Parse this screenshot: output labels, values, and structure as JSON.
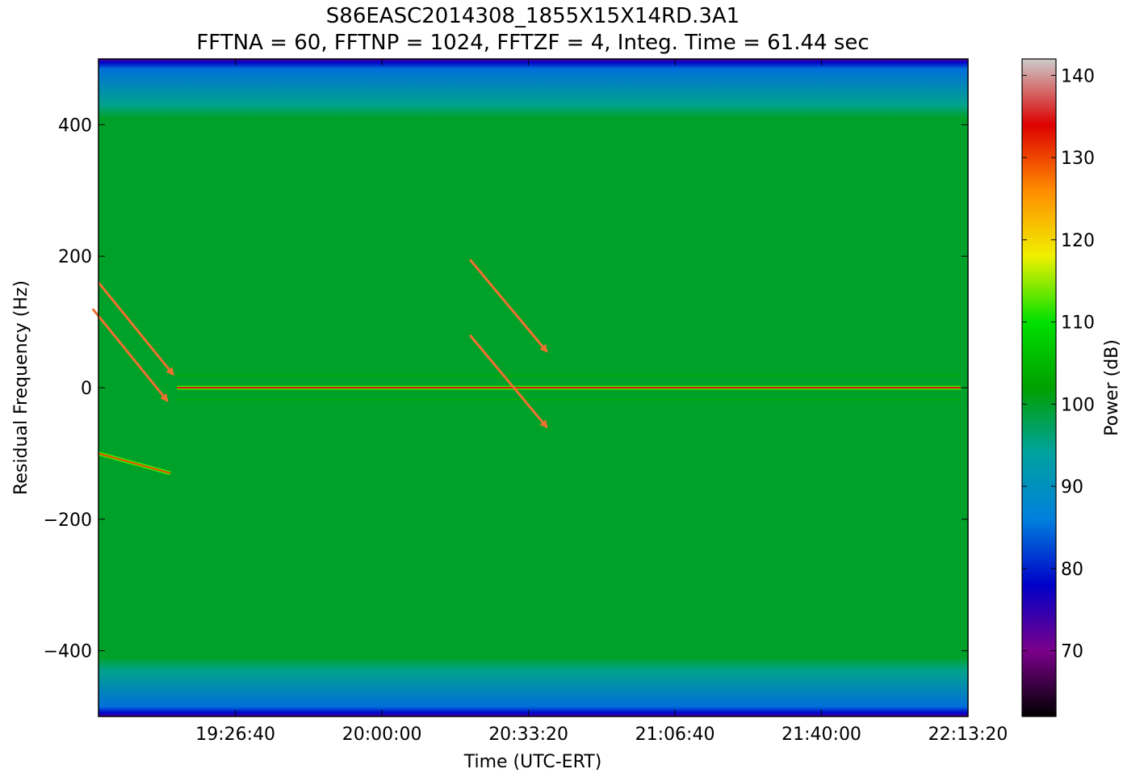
{
  "chart_data": {
    "type": "heatmap",
    "title": "S86EASC2014308_1855X15X14RD.3A1",
    "subtitle": "FFTNA = 60, FFTNP = 1024, FFTZF = 4, Integ. Time = 61.44 sec",
    "xlabel": "Time (UTC-ERT)",
    "ylabel": "Residual Frequency (Hz)",
    "colorbar_label": "Power (dB)",
    "x_ticks": [
      "19:26:40",
      "20:00:00",
      "20:33:20",
      "21:06:40",
      "21:40:00",
      "22:13:20"
    ],
    "x_tick_seconds": [
      70000,
      72000,
      74000,
      76000,
      78000,
      80000
    ],
    "xlim_seconds": [
      68130,
      80000
    ],
    "y_ticks": [
      400,
      200,
      0,
      -200,
      -400
    ],
    "y_tick_labels": [
      "400",
      "200",
      "0",
      "−200",
      "−400"
    ],
    "ylim": [
      -500,
      500
    ],
    "colorbar_ticks": [
      70,
      80,
      90,
      100,
      110,
      120,
      130,
      140
    ],
    "colorbar_range": [
      62,
      142
    ],
    "colormap": [
      "#000000",
      "#7a008a",
      "#0000c8",
      "#0080dd",
      "#00a2a0",
      "#00a000",
      "#00e000",
      "#f0f000",
      "#ff8c00",
      "#dd0000",
      "#cccccc"
    ],
    "background_power_db": 100,
    "band_edges": [
      {
        "edge": "top",
        "power_db": 85,
        "freq_from": 500,
        "freq_to": 430
      },
      {
        "edge": "bottom",
        "power_db": 85,
        "freq_from": -430,
        "freq_to": -500
      }
    ],
    "signals": [
      {
        "label": "drifting carrier",
        "t_start_seconds": 68130,
        "freq_start": -100,
        "t_end_seconds": 69110,
        "freq_end": -130,
        "power_db": 130
      },
      {
        "label": "carrier",
        "t_start_seconds": 69200,
        "t_end_seconds": 79900,
        "freq": 0,
        "power_db": 135
      },
      {
        "label": "sideband",
        "t_start_seconds": 69200,
        "t_end_seconds": 79900,
        "freq": 18,
        "power_db": 104
      },
      {
        "label": "sideband",
        "t_start_seconds": 69200,
        "t_end_seconds": 79900,
        "freq": -18,
        "power_db": 104
      }
    ],
    "annotations": {
      "arrow_color": "#f07030",
      "arrows": [
        {
          "from_seconds": 68130,
          "from_freq": 160,
          "to_seconds": 69150,
          "to_freq": 20
        },
        {
          "from_seconds": 68050,
          "from_freq": 120,
          "to_seconds": 69070,
          "to_freq": -20
        },
        {
          "from_seconds": 73200,
          "from_freq": 195,
          "to_seconds": 74250,
          "to_freq": 55
        },
        {
          "from_seconds": 73200,
          "from_freq": 80,
          "to_seconds": 74250,
          "to_freq": -60
        }
      ]
    }
  }
}
